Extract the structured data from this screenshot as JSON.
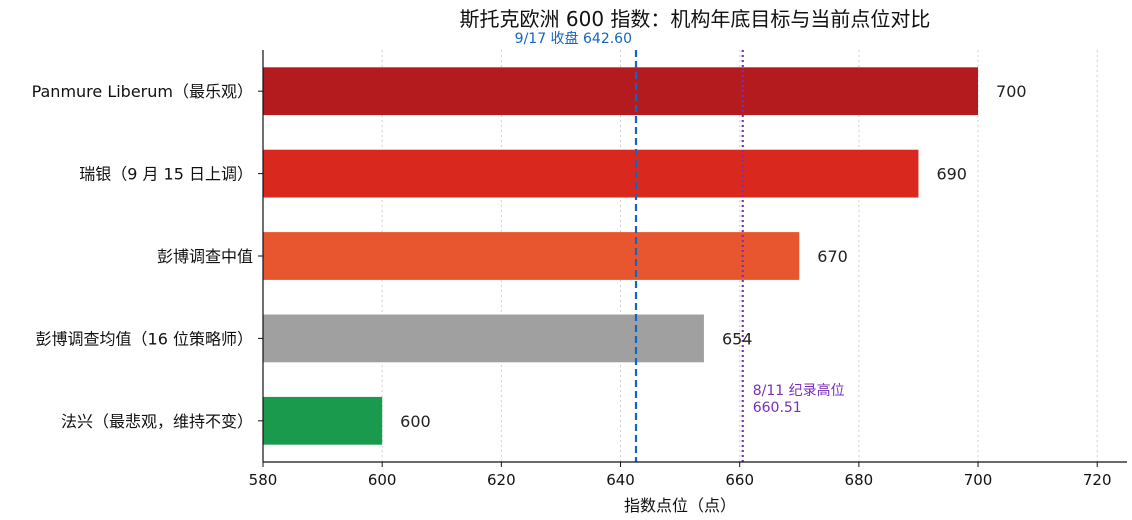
{
  "chart_data": {
    "type": "bar",
    "orientation": "horizontal",
    "title": "斯托克欧洲 600 指数：机构年底目标与当前点位对比",
    "xlabel": "指数点位（点）",
    "ylabel": "",
    "xlim": [
      580,
      725
    ],
    "xticks": [
      580,
      600,
      620,
      640,
      660,
      680,
      700,
      720
    ],
    "grid": "x-dotted",
    "categories": [
      "Panmure Liberum（最乐观）",
      "瑞银（9 月 15 日上调）",
      "彭博调查中值",
      "彭博调查均值（16 位策略师）",
      "法兴（最悲观，维持不变）"
    ],
    "values": [
      700,
      690,
      670,
      654,
      600
    ],
    "value_labels": [
      "700",
      "690",
      "670",
      "654",
      "600"
    ],
    "colors": [
      "#b31b1e",
      "#d9291f",
      "#e8562f",
      "#a0a0a0",
      "#1a9a4c"
    ],
    "reference_lines": [
      {
        "value": 642.6,
        "label": "9/17 收盘 642.60",
        "style": "dashed",
        "color": "#1565c0"
      },
      {
        "value": 660.51,
        "label_lines": [
          "8/11 纪录高位",
          "660.51"
        ],
        "style": "dotted",
        "color": "#7b2fb6"
      }
    ]
  }
}
